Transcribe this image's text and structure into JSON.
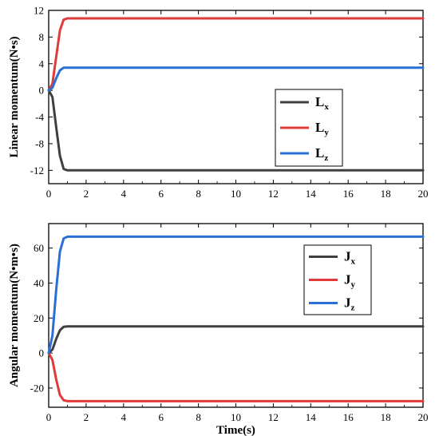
{
  "chart_data": [
    {
      "type": "line",
      "ylabel": "Linear momentum(N•s)",
      "xlabel": "",
      "xlim": [
        0,
        20
      ],
      "ylim": [
        -14,
        12
      ],
      "xticks": [
        "0",
        "2",
        "4",
        "6",
        "8",
        "10",
        "12",
        "14",
        "16",
        "18",
        "20"
      ],
      "yticks": [
        "12",
        "8",
        "4",
        "0",
        "-4",
        "-8",
        "-12"
      ],
      "yticks_values": [
        12,
        8,
        4,
        0,
        -4,
        -8,
        -12
      ],
      "legend_position": "center-right",
      "series": [
        {
          "name": "L",
          "sub": "x",
          "color": "#404040",
          "x": [
            0,
            0.2,
            0.4,
            0.6,
            0.8,
            1.0,
            20
          ],
          "y": [
            0,
            -1.0,
            -5.5,
            -9.8,
            -11.8,
            -12.0,
            -12.0
          ]
        },
        {
          "name": "L",
          "sub": "y",
          "color": "#e03a3a",
          "x": [
            0,
            0.2,
            0.4,
            0.6,
            0.8,
            1.0,
            20
          ],
          "y": [
            0,
            1.0,
            5.0,
            9.0,
            10.6,
            10.8,
            10.8
          ]
        },
        {
          "name": "L",
          "sub": "z",
          "color": "#2a6fd6",
          "x": [
            0,
            0.2,
            0.4,
            0.6,
            0.8,
            1.0,
            20
          ],
          "y": [
            0,
            0.4,
            1.8,
            3.0,
            3.4,
            3.4,
            3.4
          ]
        }
      ]
    },
    {
      "type": "line",
      "ylabel": "Angular momentum(N•m•s)",
      "xlabel": "Time(s)",
      "xlim": [
        0,
        20
      ],
      "ylim": [
        -31,
        74
      ],
      "xticks": [
        "0",
        "2",
        "4",
        "6",
        "8",
        "10",
        "12",
        "14",
        "16",
        "18",
        "20"
      ],
      "yticks": [
        "60",
        "40",
        "20",
        "0",
        "-20"
      ],
      "yticks_values": [
        60,
        40,
        20,
        0,
        -20
      ],
      "legend_position": "top-right",
      "series": [
        {
          "name": "J",
          "sub": "x",
          "color": "#404040",
          "x": [
            0,
            0.2,
            0.4,
            0.6,
            0.8,
            1.0,
            20
          ],
          "y": [
            0,
            2,
            8,
            13,
            15,
            15.2,
            15.2
          ]
        },
        {
          "name": "J",
          "sub": "y",
          "color": "#e03a3a",
          "x": [
            0,
            0.2,
            0.4,
            0.6,
            0.8,
            1.0,
            20
          ],
          "y": [
            0,
            -4,
            -15,
            -24,
            -27,
            -27.5,
            -27.5
          ]
        },
        {
          "name": "J",
          "sub": "z",
          "color": "#2a6fd6",
          "x": [
            0,
            0.2,
            0.4,
            0.6,
            0.8,
            1.0,
            20
          ],
          "y": [
            0,
            10,
            36,
            58,
            65.5,
            66.5,
            66.5
          ]
        }
      ]
    }
  ]
}
